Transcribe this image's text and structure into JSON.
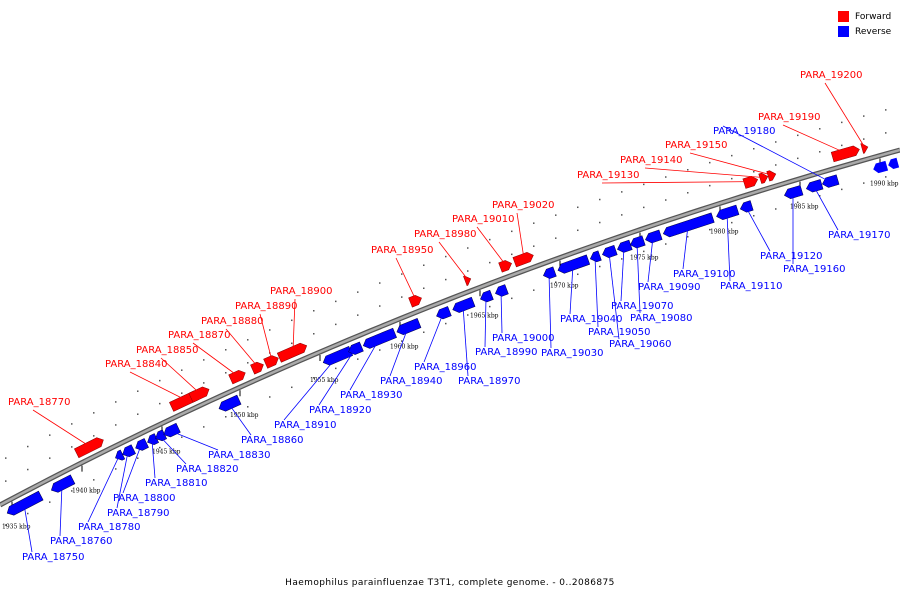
{
  "colors": {
    "forward": "#ff0000",
    "reverse": "#0000ff",
    "backbone": "#808080"
  },
  "legend": [
    {
      "label": "Forward",
      "color": "#ff0000"
    },
    {
      "label": "Reverse",
      "color": "#0000ff"
    }
  ],
  "caption": "Haemophilus parainfluenzae T3T1, complete genome. - 0..2086875",
  "scale_ticks": [
    "1935 kbp",
    "1940 kbp",
    "1945 kbp",
    "1950 kbp",
    "1955 kbp",
    "1960 kbp",
    "1965 kbp",
    "1970 kbp",
    "1975 kbp",
    "1980 kbp",
    "1985 kbp",
    "1990 kbp"
  ],
  "genes": {
    "forward": [
      "PARA_18770",
      "PARA_18840",
      "PARA_18850",
      "PARA_18870",
      "PARA_18880",
      "PARA_18890",
      "PARA_18900",
      "PARA_18950",
      "PARA_18980",
      "PARA_19010",
      "PARA_19020",
      "PARA_19130",
      "PARA_19140",
      "PARA_19150",
      "PARA_19190",
      "PARA_19200"
    ],
    "reverse": [
      "PARA_18750",
      "PARA_18760",
      "PARA_18780",
      "PARA_18790",
      "PARA_18800",
      "PARA_18810",
      "PARA_18820",
      "PARA_18830",
      "PARA_18860",
      "PARA_18910",
      "PARA_18920",
      "PARA_18930",
      "PARA_18940",
      "PARA_18960",
      "PARA_18970",
      "PARA_18990",
      "PARA_19000",
      "PARA_19030",
      "PARA_19040",
      "PARA_19050",
      "PARA_19060",
      "PARA_19070",
      "PARA_19080",
      "PARA_19090",
      "PARA_19100",
      "PARA_19110",
      "PARA_19120",
      "PARA_19160",
      "PARA_19170",
      "PARA_19180"
    ]
  }
}
